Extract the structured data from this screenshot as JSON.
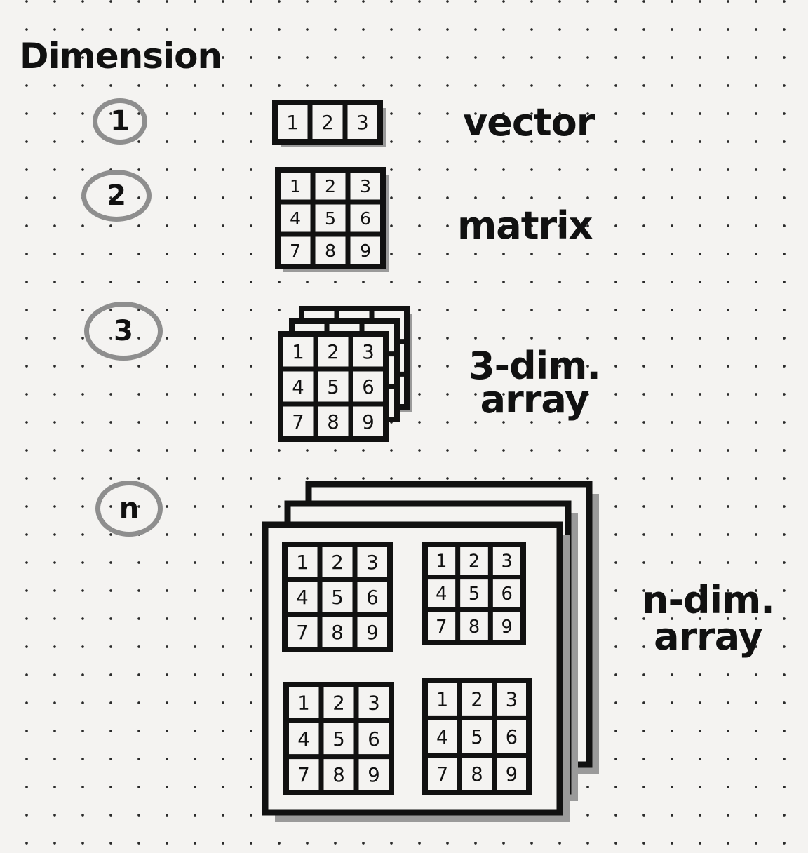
{
  "title": "Dimension",
  "dimensions": [
    {
      "number": "1",
      "label": "vector"
    },
    {
      "number": "2",
      "label": "matrix"
    },
    {
      "number": "3",
      "label_line1": "3-dim.",
      "label_line2": "array"
    },
    {
      "number": "n",
      "label_line1": "n-dim.",
      "label_line2": "array"
    }
  ],
  "vector_cells": [
    "1",
    "2",
    "3"
  ],
  "matrix_cells": [
    "1",
    "2",
    "3",
    "4",
    "5",
    "6",
    "7",
    "8",
    "9"
  ],
  "colors": {
    "ink": "#111111",
    "shadow": "#9a9a9a",
    "paper": "#f4f3f1"
  }
}
